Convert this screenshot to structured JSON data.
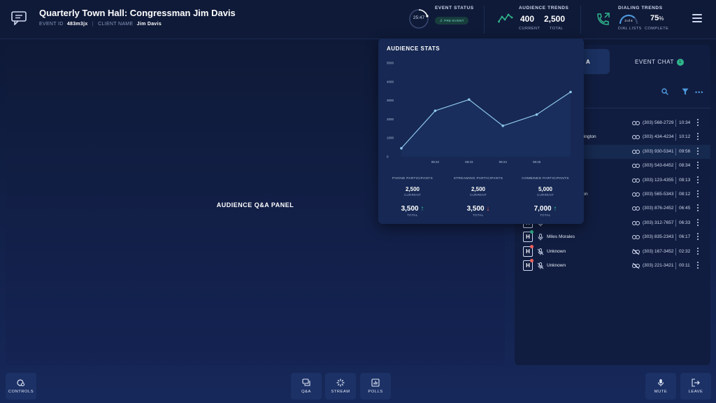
{
  "header": {
    "title": "Quarterly Town Hall: Congressman Jim Davis",
    "event_id_label": "EVENT ID",
    "event_id": "483m3jx",
    "client_name_label": "CLIENT NAME",
    "client_name": "Jim Davis",
    "event_status_label": "EVENT STATUS",
    "status_time": "25:47",
    "status_pill": "PRE-EVENT",
    "audience_trends_label": "AUDIENCE TRENDS",
    "audience_current": "400",
    "audience_current_label": "CURRENT",
    "audience_total": "2,500",
    "audience_total_label": "TOTAL",
    "dialing_trends_label": "DIALING TRENDS",
    "dial_lists": "3 of 4",
    "dial_lists_label": "DIAL LISTS",
    "complete_pct": "75",
    "pct_sign": "%",
    "complete_label": "COMPLETE",
    "complete_fraction": 0.75
  },
  "main": {
    "qa_panel_label": "AUDIENCE Q&A PANEL"
  },
  "right_panel": {
    "tab_active_label": "A",
    "tab_chat_label": "EVENT CHAT",
    "chat_badge": "1",
    "rows": [
      {
        "badge": "",
        "name": "",
        "phone": "(303) 568-2729",
        "time": "10:34",
        "linked": true
      },
      {
        "badge": "",
        "name": "shington",
        "phone": "(303) 434-4234",
        "time": "10:12",
        "linked": true
      },
      {
        "badge": "",
        "name": "",
        "phone": "(303) 930-5341",
        "time": "09:56",
        "linked": true
      },
      {
        "badge": "",
        "name": "",
        "phone": "(303) 543-6452",
        "time": "08:34",
        "linked": true
      },
      {
        "badge": "",
        "name": "",
        "phone": "(303) 123-4355",
        "time": "08:13",
        "linked": true
      },
      {
        "badge": "",
        "name": "gton",
        "phone": "(303) 565-5343",
        "time": "08:12",
        "linked": true
      },
      {
        "badge": "",
        "name": "",
        "phone": "(303) 876-2452",
        "time": "06:45",
        "linked": true
      },
      {
        "badge": "H",
        "name": "",
        "phone": "(303) 312-7657",
        "time": "06:33",
        "linked": true
      },
      {
        "badge": "H",
        "name": "Miles Morales",
        "phone": "(303) 835-2343",
        "time": "06:17",
        "linked": true,
        "dot_color": "#2fb58c"
      },
      {
        "badge": "H",
        "name": "Unknown",
        "phone": "(303) 167-3452",
        "time": "02:32",
        "linked": false,
        "dot_color": "#f25f5c"
      },
      {
        "badge": "H",
        "name": "Unknown",
        "phone": "(303) 221-3421",
        "time": "00:11",
        "linked": false,
        "dot_color": "#f25f5c"
      }
    ]
  },
  "audience_stats": {
    "title": "AUDIENCE STATS",
    "columns": [
      {
        "label": "PHONE PARTICIPANTS",
        "current": "2,500",
        "current_label": "CURRENT",
        "total": "3,500",
        "total_label": "TOTAL",
        "arrow": "↑",
        "trend": "up"
      },
      {
        "label": "STREAMING PARTICIPANTS",
        "current": "2,500",
        "current_label": "CURRENT",
        "total": "3,500",
        "total_label": "TOTAL",
        "arrow": "↓",
        "trend": "down"
      },
      {
        "label": "COMBINED PARTICIPANTS",
        "current": "5,000",
        "current_label": "CURRENT",
        "total": "7,000",
        "total_label": "TOTAL",
        "arrow": "↑",
        "trend": "up"
      }
    ]
  },
  "chart_data": {
    "type": "line",
    "x": [
      0,
      1,
      2,
      3,
      4,
      5
    ],
    "x_tick_labels": [
      "08:22",
      "08:23",
      "08:24",
      "08:25"
    ],
    "x_tick_at": [
      1,
      2,
      3,
      4
    ],
    "y_ticks": [
      "0",
      "1000",
      "2000",
      "3000",
      "4000",
      "5000"
    ],
    "ylim": [
      0,
      5000
    ],
    "series": [
      {
        "values": [
          450,
          2450,
          3050,
          1650,
          2250,
          3450
        ],
        "color": "#8ec6ea"
      }
    ]
  },
  "footer": {
    "controls_label": "CONTROLS",
    "qa_label": "Q&A",
    "stream_label": "STREAM",
    "polls_label": "POLLS",
    "mute_label": "MUTE",
    "leave_label": "LEAVE"
  },
  "colors": {
    "accent_teal": "#2fb58c",
    "accent_blue": "#4e9be0",
    "alert_red": "#f25f5c"
  }
}
